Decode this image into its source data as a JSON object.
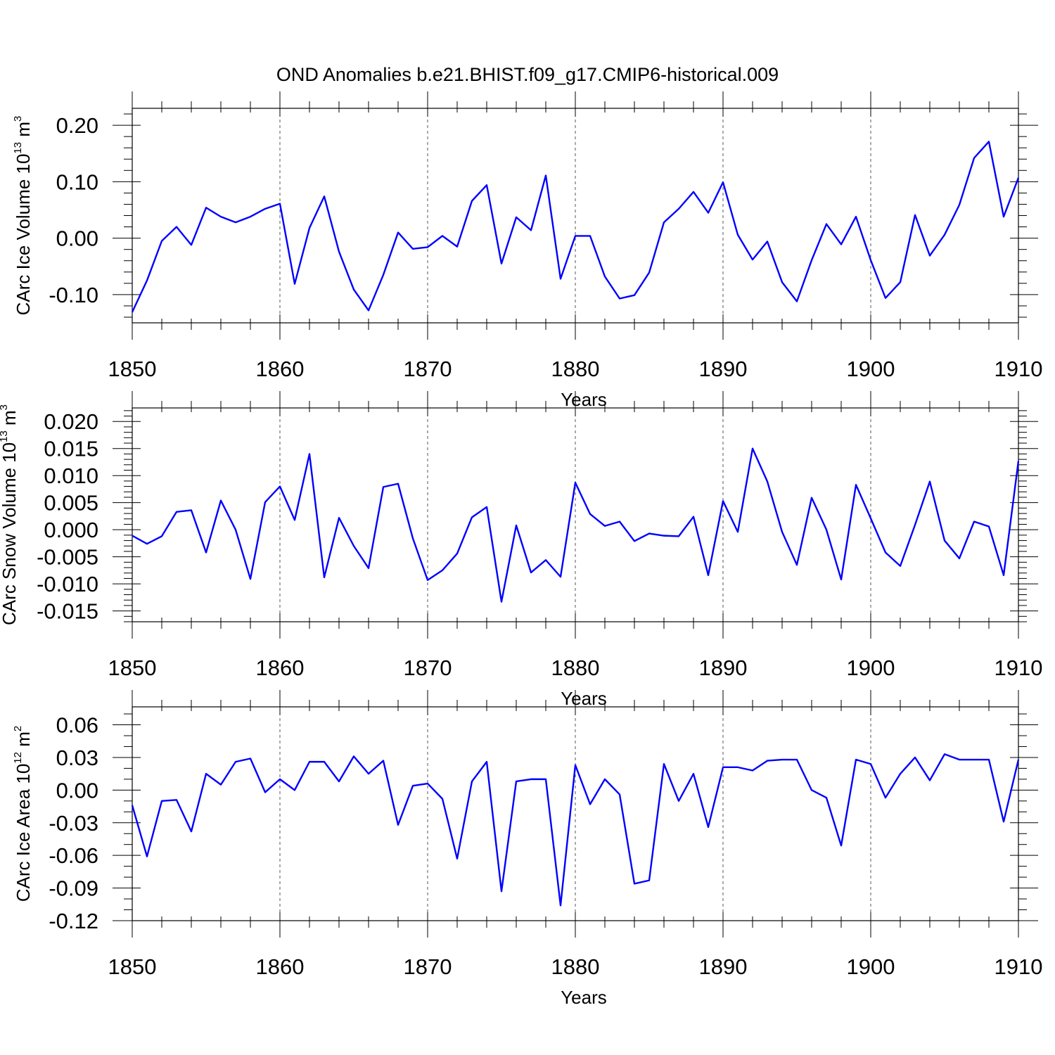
{
  "title": "OND Anomalies b.e21.BHIST.f09_g17.CMIP6-historical.009",
  "line_color": "#0000ff",
  "chart_data": [
    {
      "type": "line",
      "name": "ice-volume",
      "ylabel": {
        "main": "CArc Ice Volume 10",
        "sup": "13",
        "unit": " m",
        "unit_sup": "3"
      },
      "xlabel": "Years",
      "xlim": [
        1850,
        1910
      ],
      "ylim": [
        -0.15,
        0.23
      ],
      "x_ticks": [
        1850,
        1860,
        1870,
        1880,
        1890,
        1900,
        1910
      ],
      "x_tick_labels": [
        "1850",
        "1860",
        "1870",
        "1880",
        "1890",
        "1900",
        "1910"
      ],
      "y_ticks": [
        -0.1,
        0.0,
        0.1,
        0.2
      ],
      "y_tick_labels": [
        "-0.10",
        "0.00",
        "0.10",
        "0.20"
      ],
      "y_minor_step": 0.02,
      "x_start": 1850,
      "series": [
        {
          "name": "CArc Ice Volume",
          "values": [
            -0.131,
            -0.075,
            -0.005,
            0.02,
            -0.012,
            0.054,
            0.038,
            0.028,
            0.038,
            0.052,
            0.061,
            -0.081,
            0.018,
            0.074,
            -0.024,
            -0.091,
            -0.128,
            -0.065,
            0.01,
            -0.019,
            -0.016,
            0.004,
            -0.015,
            0.066,
            0.094,
            -0.045,
            0.037,
            0.014,
            0.111,
            -0.072,
            0.004,
            0.004,
            -0.068,
            -0.107,
            -0.101,
            -0.061,
            0.028,
            0.052,
            0.082,
            0.045,
            0.099,
            0.006,
            -0.038,
            -0.006,
            -0.078,
            -0.112,
            -0.039,
            0.025,
            -0.011,
            0.038,
            -0.039,
            -0.106,
            -0.078,
            0.041,
            -0.031,
            0.006,
            0.059,
            0.142,
            0.171,
            0.038,
            0.107
          ]
        }
      ]
    },
    {
      "type": "line",
      "name": "snow-volume",
      "ylabel": {
        "main": "CArc Snow Volume 10",
        "sup": "13",
        "unit": " m",
        "unit_sup": "3"
      },
      "xlabel": "Years",
      "xlim": [
        1850,
        1910
      ],
      "ylim": [
        -0.017,
        0.0225
      ],
      "x_ticks": [
        1850,
        1860,
        1870,
        1880,
        1890,
        1900,
        1910
      ],
      "x_tick_labels": [
        "1850",
        "1860",
        "1870",
        "1880",
        "1890",
        "1900",
        "1910"
      ],
      "y_ticks": [
        -0.015,
        -0.01,
        -0.005,
        0.0,
        0.005,
        0.01,
        0.015,
        0.02
      ],
      "y_tick_labels": [
        "-0.015",
        "-0.010",
        "-0.005",
        "0.000",
        "0.005",
        "0.010",
        "0.015",
        "0.020"
      ],
      "y_minor_step": 0.001,
      "x_start": 1850,
      "series": [
        {
          "name": "CArc Snow Volume",
          "values": [
            -0.0011,
            -0.0026,
            -0.0012,
            0.0033,
            0.0036,
            -0.0042,
            0.0054,
            0.0,
            -0.0091,
            0.0051,
            0.008,
            0.0018,
            0.014,
            -0.0088,
            0.0022,
            -0.003,
            -0.0071,
            0.0079,
            0.0085,
            -0.0016,
            -0.0093,
            -0.0075,
            -0.0044,
            0.0023,
            0.0042,
            -0.0133,
            0.0008,
            -0.0079,
            -0.0056,
            -0.0087,
            0.0087,
            0.0029,
            0.0007,
            0.0015,
            -0.0021,
            -0.0007,
            -0.0011,
            -0.0012,
            0.0024,
            -0.0084,
            0.0053,
            -0.0004,
            0.015,
            0.0089,
            -0.0004,
            -0.0065,
            0.0059,
            0.0,
            -0.0092,
            0.0083,
            0.0021,
            -0.0042,
            -0.0067,
            0.0009,
            0.0089,
            -0.002,
            -0.0053,
            0.0015,
            0.0006,
            -0.0084,
            0.0127
          ]
        }
      ]
    },
    {
      "type": "line",
      "name": "ice-area",
      "ylabel": {
        "main": "CArc Ice Area 10",
        "sup": "12",
        "unit": " m",
        "unit_sup": "2"
      },
      "xlabel": "Years",
      "xlim": [
        1850,
        1910
      ],
      "ylim": [
        -0.12,
        0.0765
      ],
      "x_ticks": [
        1850,
        1860,
        1870,
        1880,
        1890,
        1900,
        1910
      ],
      "x_tick_labels": [
        "1850",
        "1860",
        "1870",
        "1880",
        "1890",
        "1900",
        "1910"
      ],
      "y_ticks": [
        -0.12,
        -0.09,
        -0.06,
        -0.03,
        0.0,
        0.03,
        0.06
      ],
      "y_tick_labels": [
        "-0.12",
        "-0.09",
        "-0.06",
        "-0.03",
        "0.00",
        "0.03",
        "0.06"
      ],
      "y_minor_step": 0.01,
      "x_start": 1850,
      "series": [
        {
          "name": "CArc Ice Area",
          "values": [
            -0.014,
            -0.061,
            -0.01,
            -0.009,
            -0.038,
            0.015,
            0.005,
            0.026,
            0.029,
            -0.002,
            0.01,
            0.0,
            0.026,
            0.026,
            0.008,
            0.031,
            0.015,
            0.027,
            -0.032,
            0.004,
            0.006,
            -0.008,
            -0.063,
            0.008,
            0.026,
            -0.093,
            0.008,
            0.01,
            0.01,
            -0.106,
            0.023,
            -0.013,
            0.01,
            -0.004,
            -0.086,
            -0.083,
            0.024,
            -0.01,
            0.015,
            -0.034,
            0.021,
            0.021,
            0.018,
            0.027,
            0.028,
            0.028,
            0.0,
            -0.007,
            -0.051,
            0.028,
            0.024,
            -0.007,
            0.015,
            0.03,
            0.009,
            0.033,
            0.028,
            0.028,
            0.028,
            -0.029,
            0.028
          ]
        }
      ]
    }
  ]
}
